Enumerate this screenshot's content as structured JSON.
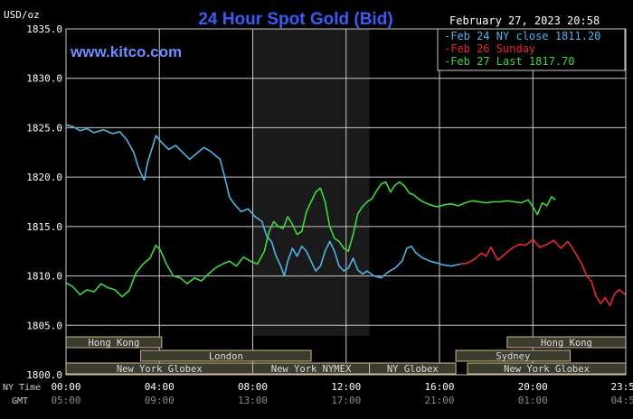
{
  "chart_data": {
    "type": "line",
    "title": "24 Hour Spot Gold (Bid)",
    "unit_label": "USD/oz",
    "watermark": "www.kitco.com",
    "timestamp": "February 27, 2023 20:58",
    "ylim": [
      1800,
      1835
    ],
    "y_ticks": [
      "1835.0",
      "1830.0",
      "1825.0",
      "1820.0",
      "1815.0",
      "1810.0",
      "1805.0",
      "1800.0"
    ],
    "x_ticks_ny": [
      "00:00",
      "04:00",
      "08:00",
      "12:00",
      "16:00",
      "20:00",
      "23:59"
    ],
    "x_ticks_gmt": [
      "05:00",
      "09:00",
      "13:00",
      "17:00",
      "21:00",
      "01:00",
      "04:59"
    ],
    "x_row_labels": [
      "NY Time",
      "GMT"
    ],
    "grid": true,
    "legend_position": "top-right",
    "colors": {
      "background": "#000000",
      "grid": "#c8c8c8",
      "title": "#3a5cf5",
      "watermark": "#6f8cff",
      "feb24": "#4fb4e6",
      "feb26": "#e8282e",
      "feb27": "#3ed93e",
      "session_fill": "#3c3c2e",
      "session_border": "#ccb98a",
      "session_text": "#dddddd",
      "highlight": "#1a1a1a"
    },
    "series": [
      {
        "name": "Feb 24 NY close 1811.20",
        "color_key": "feb24",
        "points": [
          [
            0,
            1825.3
          ],
          [
            0.3,
            1825.1
          ],
          [
            0.6,
            1824.7
          ],
          [
            0.9,
            1824.9
          ],
          [
            1.2,
            1824.5
          ],
          [
            1.6,
            1824.8
          ],
          [
            2.0,
            1824.4
          ],
          [
            2.3,
            1824.6
          ],
          [
            2.6,
            1823.8
          ],
          [
            2.9,
            1822.5
          ],
          [
            3.1,
            1821.0
          ],
          [
            3.25,
            1820.2
          ],
          [
            3.35,
            1819.7
          ],
          [
            3.5,
            1821.5
          ],
          [
            3.7,
            1823.0
          ],
          [
            3.85,
            1824.2
          ],
          [
            4.1,
            1823.5
          ],
          [
            4.4,
            1822.8
          ],
          [
            4.7,
            1823.2
          ],
          [
            5.0,
            1822.5
          ],
          [
            5.3,
            1821.8
          ],
          [
            5.6,
            1822.4
          ],
          [
            5.9,
            1823.0
          ],
          [
            6.2,
            1822.6
          ],
          [
            6.4,
            1822.2
          ],
          [
            6.6,
            1821.8
          ],
          [
            6.8,
            1820.0
          ],
          [
            7.0,
            1818.0
          ],
          [
            7.2,
            1817.3
          ],
          [
            7.5,
            1816.5
          ],
          [
            7.8,
            1816.8
          ],
          [
            8.1,
            1816.0
          ],
          [
            8.4,
            1815.5
          ],
          [
            8.6,
            1814.0
          ],
          [
            8.8,
            1813.5
          ],
          [
            9.0,
            1812.0
          ],
          [
            9.2,
            1811.0
          ],
          [
            9.35,
            1810.0
          ],
          [
            9.5,
            1811.5
          ],
          [
            9.7,
            1812.8
          ],
          [
            9.9,
            1812.0
          ],
          [
            10.1,
            1813.0
          ],
          [
            10.3,
            1812.5
          ],
          [
            10.5,
            1811.5
          ],
          [
            10.7,
            1810.5
          ],
          [
            10.9,
            1811.0
          ],
          [
            11.1,
            1812.5
          ],
          [
            11.3,
            1813.5
          ],
          [
            11.5,
            1812.5
          ],
          [
            11.7,
            1811.0
          ],
          [
            11.9,
            1810.5
          ],
          [
            12.1,
            1810.8
          ],
          [
            12.3,
            1811.8
          ],
          [
            12.5,
            1810.6
          ],
          [
            12.7,
            1810.2
          ],
          [
            12.9,
            1810.5
          ],
          [
            13.2,
            1810.0
          ],
          [
            13.5,
            1809.8
          ],
          [
            13.8,
            1810.4
          ],
          [
            14.1,
            1810.8
          ],
          [
            14.4,
            1811.5
          ],
          [
            14.6,
            1812.8
          ],
          [
            14.8,
            1813.0
          ],
          [
            15.0,
            1812.3
          ],
          [
            15.3,
            1811.8
          ],
          [
            15.6,
            1811.5
          ],
          [
            15.9,
            1811.3
          ],
          [
            16.2,
            1811.1
          ],
          [
            16.5,
            1811.0
          ],
          [
            16.9,
            1811.2
          ]
        ]
      },
      {
        "name": "Feb 26 Sunday",
        "color_key": "feb26",
        "points": [
          [
            16.9,
            1811.2
          ],
          [
            17.2,
            1811.3
          ],
          [
            17.5,
            1811.7
          ],
          [
            17.8,
            1812.3
          ],
          [
            18.0,
            1812.0
          ],
          [
            18.2,
            1812.9
          ],
          [
            18.5,
            1811.6
          ],
          [
            18.8,
            1812.2
          ],
          [
            19.1,
            1812.8
          ],
          [
            19.4,
            1813.2
          ],
          [
            19.7,
            1813.1
          ],
          [
            20.0,
            1813.7
          ],
          [
            20.3,
            1812.9
          ],
          [
            20.6,
            1813.2
          ],
          [
            20.9,
            1813.6
          ],
          [
            21.2,
            1812.8
          ],
          [
            21.5,
            1813.5
          ],
          [
            21.7,
            1812.8
          ],
          [
            21.9,
            1812.0
          ],
          [
            22.1,
            1811.2
          ],
          [
            22.3,
            1810.0
          ],
          [
            22.5,
            1809.5
          ],
          [
            22.7,
            1808.0
          ],
          [
            22.9,
            1807.2
          ],
          [
            23.1,
            1807.8
          ],
          [
            23.3,
            1807.0
          ],
          [
            23.5,
            1808.2
          ],
          [
            23.7,
            1808.6
          ],
          [
            23.98,
            1808.1
          ]
        ]
      },
      {
        "name": "Feb 27 Last 1817.70",
        "color_key": "feb27",
        "points": [
          [
            0,
            1809.3
          ],
          [
            0.3,
            1808.9
          ],
          [
            0.6,
            1808.1
          ],
          [
            0.9,
            1808.6
          ],
          [
            1.2,
            1808.4
          ],
          [
            1.5,
            1809.2
          ],
          [
            1.8,
            1808.8
          ],
          [
            2.1,
            1808.6
          ],
          [
            2.4,
            1807.9
          ],
          [
            2.7,
            1808.5
          ],
          [
            3.0,
            1810.3
          ],
          [
            3.3,
            1811.2
          ],
          [
            3.6,
            1811.8
          ],
          [
            3.85,
            1813.1
          ],
          [
            4.05,
            1812.6
          ],
          [
            4.3,
            1811.2
          ],
          [
            4.6,
            1810.0
          ],
          [
            4.9,
            1809.8
          ],
          [
            5.2,
            1809.2
          ],
          [
            5.5,
            1809.8
          ],
          [
            5.8,
            1809.5
          ],
          [
            6.1,
            1810.2
          ],
          [
            6.4,
            1810.8
          ],
          [
            6.7,
            1811.2
          ],
          [
            7.0,
            1811.5
          ],
          [
            7.3,
            1811.0
          ],
          [
            7.6,
            1811.9
          ],
          [
            7.9,
            1811.5
          ],
          [
            8.2,
            1811.2
          ],
          [
            8.5,
            1812.5
          ],
          [
            8.7,
            1814.5
          ],
          [
            8.9,
            1815.5
          ],
          [
            9.1,
            1815.0
          ],
          [
            9.3,
            1814.8
          ],
          [
            9.5,
            1816.0
          ],
          [
            9.7,
            1815.2
          ],
          [
            9.9,
            1814.2
          ],
          [
            10.1,
            1814.5
          ],
          [
            10.3,
            1816.5
          ],
          [
            10.5,
            1817.5
          ],
          [
            10.7,
            1818.5
          ],
          [
            10.9,
            1818.9
          ],
          [
            11.1,
            1817.5
          ],
          [
            11.3,
            1815.0
          ],
          [
            11.5,
            1813.8
          ],
          [
            11.7,
            1813.5
          ],
          [
            11.9,
            1812.8
          ],
          [
            12.1,
            1812.5
          ],
          [
            12.3,
            1814.2
          ],
          [
            12.5,
            1816.3
          ],
          [
            12.7,
            1817.0
          ],
          [
            12.9,
            1817.5
          ],
          [
            13.1,
            1817.8
          ],
          [
            13.3,
            1818.6
          ],
          [
            13.5,
            1819.3
          ],
          [
            13.7,
            1819.5
          ],
          [
            13.9,
            1818.5
          ],
          [
            14.1,
            1819.2
          ],
          [
            14.3,
            1819.5
          ],
          [
            14.5,
            1819.1
          ],
          [
            14.7,
            1818.4
          ],
          [
            14.9,
            1818.2
          ],
          [
            15.1,
            1817.8
          ],
          [
            15.3,
            1817.5
          ],
          [
            15.6,
            1817.2
          ],
          [
            15.9,
            1817.0
          ],
          [
            16.2,
            1817.2
          ],
          [
            16.5,
            1817.3
          ],
          [
            16.8,
            1817.1
          ],
          [
            17.1,
            1817.4
          ],
          [
            17.4,
            1817.6
          ],
          [
            17.7,
            1817.5
          ],
          [
            18.0,
            1817.4
          ],
          [
            18.3,
            1817.5
          ],
          [
            18.6,
            1817.5
          ],
          [
            18.9,
            1817.6
          ],
          [
            19.2,
            1817.5
          ],
          [
            19.5,
            1817.4
          ],
          [
            19.8,
            1817.7
          ],
          [
            20.0,
            1817.0
          ],
          [
            20.2,
            1816.2
          ],
          [
            20.4,
            1817.4
          ],
          [
            20.6,
            1817.1
          ],
          [
            20.8,
            1818.0
          ],
          [
            20.97,
            1817.7
          ]
        ]
      }
    ],
    "night_shade_hours": [
      8,
      13
    ],
    "sessions": [
      {
        "label": "Hong Kong",
        "start": 0,
        "end": 4.1,
        "row": 0
      },
      {
        "label": "London",
        "start": 3.2,
        "end": 10.5,
        "row": 1
      },
      {
        "label": "New York Globex",
        "start": 0,
        "end": 8.0,
        "row": 2
      },
      {
        "label": "New York NYMEX",
        "start": 8.0,
        "end": 13.0,
        "row": 2
      },
      {
        "label": "NY Globex",
        "start": 13.0,
        "end": 16.7,
        "row": 2
      },
      {
        "label": "Sydney",
        "start": 16.7,
        "end": 21.6,
        "row": 1
      },
      {
        "label": "Hong Kong",
        "start": 18.9,
        "end": 23.98,
        "row": 0
      },
      {
        "label": "New York Globex",
        "start": 17.2,
        "end": 23.98,
        "row": 2
      }
    ]
  }
}
